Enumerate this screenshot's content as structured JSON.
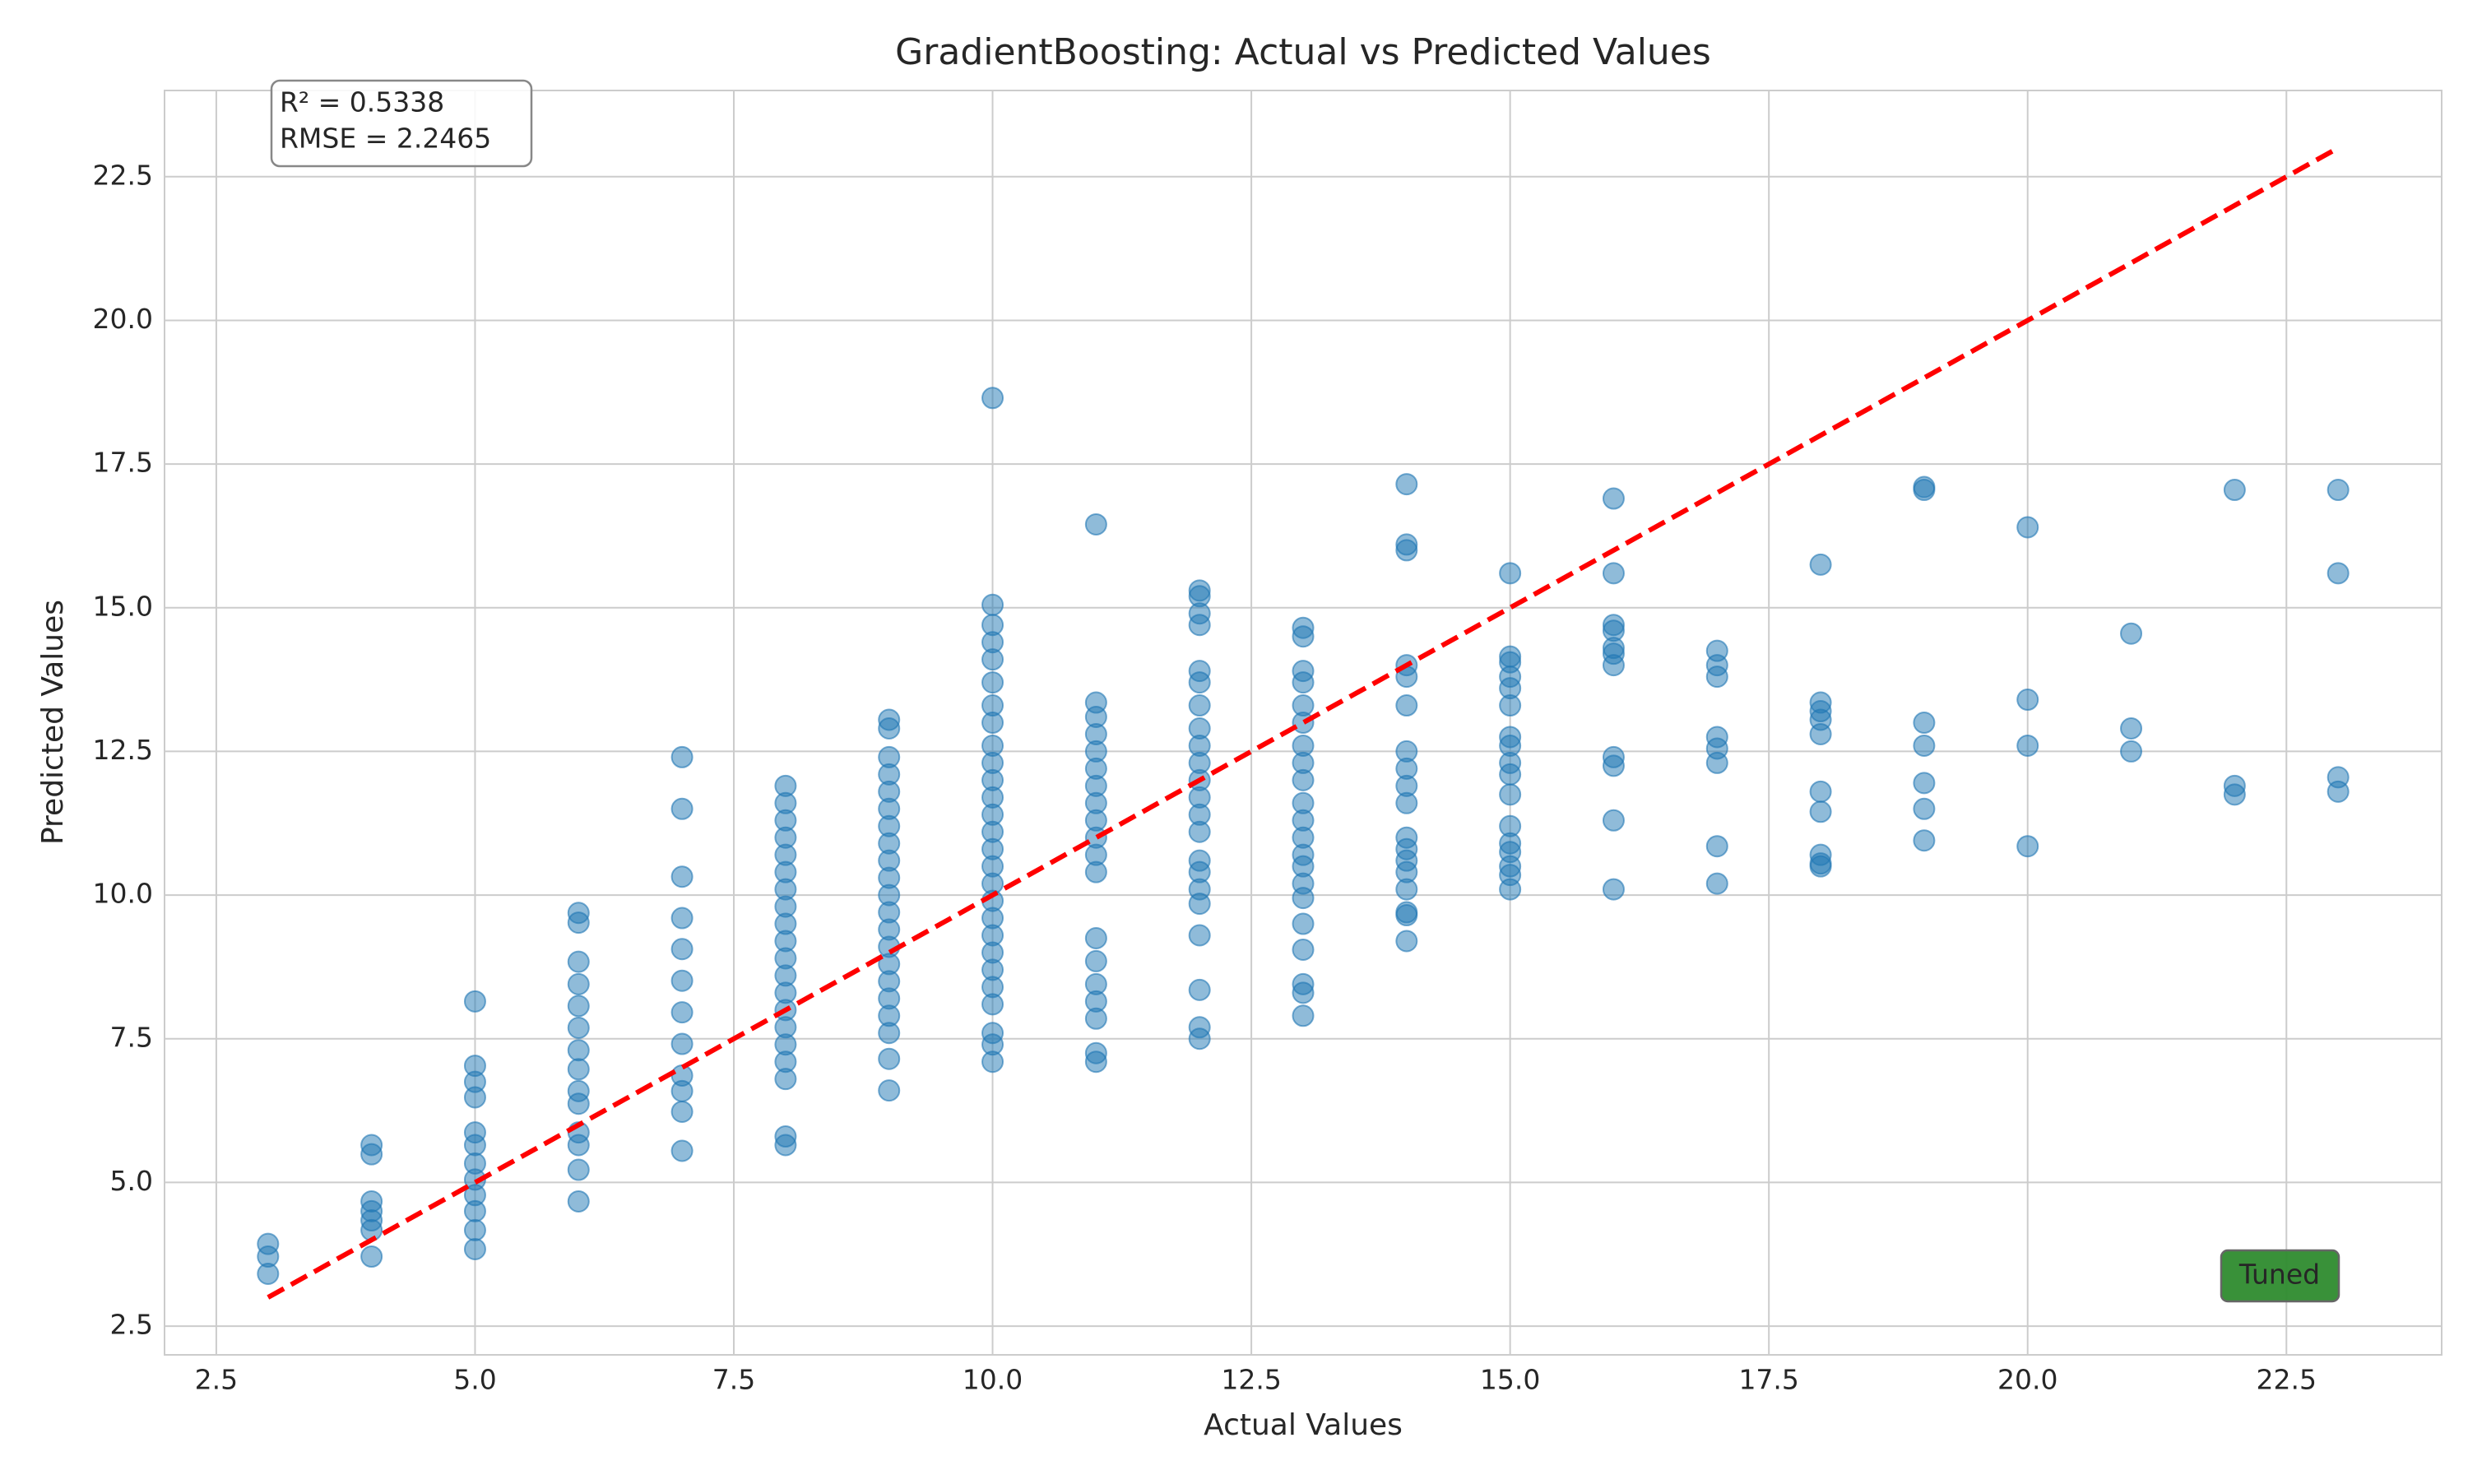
{
  "chart_data": {
    "type": "scatter",
    "title": "GradientBoosting: Actual vs Predicted Values",
    "x_label": "Actual Values",
    "y_label": "Predicted Values",
    "color": "#1f77b4",
    "xlim": [
      2.0,
      24.0
    ],
    "ylim": [
      2.0,
      24.0
    ],
    "xticks": [
      {
        "value": 2.5,
        "label": "2.5"
      },
      {
        "value": 5,
        "label": "5.0"
      },
      {
        "value": 7.5,
        "label": "7.5"
      },
      {
        "value": 10,
        "label": "10.0"
      },
      {
        "value": 12.5,
        "label": "12.5"
      },
      {
        "value": 15,
        "label": "15.0"
      },
      {
        "value": 17.5,
        "label": "17.5"
      },
      {
        "value": 20,
        "label": "20.0"
      },
      {
        "value": 22.5,
        "label": "22.5"
      }
    ],
    "yticks": [
      {
        "value": 2.5,
        "label": "2.5"
      },
      {
        "value": 5,
        "label": "5.0"
      },
      {
        "value": 7.5,
        "label": "7.5"
      },
      {
        "value": 10,
        "label": "10.0"
      },
      {
        "value": 12.5,
        "label": "12.5"
      },
      {
        "value": 15,
        "label": "15.0"
      },
      {
        "value": 17.5,
        "label": "17.5"
      },
      {
        "value": 20,
        "label": "20.0"
      },
      {
        "value": 22.5,
        "label": "22.5"
      }
    ],
    "grid": true,
    "x": [
      3,
      3,
      3,
      4,
      4,
      4,
      4,
      4,
      4,
      4,
      5,
      5,
      5,
      5,
      5,
      5,
      5,
      5,
      5,
      5,
      5,
      5,
      6,
      6,
      6,
      6,
      6,
      6,
      6,
      6,
      6,
      6,
      6,
      6,
      6,
      6,
      7,
      7,
      7,
      7,
      7,
      7,
      7,
      7,
      7,
      7,
      7,
      7,
      8,
      8,
      8,
      8,
      8,
      8,
      8,
      8,
      8,
      8,
      8,
      8,
      8,
      8,
      8,
      8,
      8,
      8,
      8,
      8,
      9,
      9,
      9,
      9,
      9,
      9,
      9,
      9,
      9,
      9,
      9,
      9,
      9,
      9,
      9,
      9,
      9,
      9,
      9,
      9,
      9,
      10,
      10,
      10,
      10,
      10,
      10,
      10,
      10,
      10,
      10,
      10,
      10,
      10,
      10,
      10,
      10,
      10,
      10,
      10,
      10,
      10,
      10,
      10,
      10,
      10,
      10,
      10,
      11,
      11,
      11,
      11,
      11,
      11,
      11,
      11,
      11,
      11,
      11,
      11,
      11,
      11,
      11,
      11,
      11,
      11,
      11,
      12,
      12,
      12,
      12,
      12,
      12,
      12,
      12,
      12,
      12,
      12,
      12,
      12,
      12,
      12,
      12,
      12,
      12,
      12,
      12,
      12,
      12,
      13,
      13,
      13,
      13,
      13,
      13,
      13,
      13,
      13,
      13,
      13,
      13,
      13,
      13,
      13,
      13,
      13,
      13,
      13,
      13,
      13,
      14,
      14,
      14,
      14,
      14,
      14,
      14,
      14,
      14,
      14,
      14,
      14,
      14,
      14,
      14,
      14,
      14,
      14,
      15,
      15,
      15,
      15,
      15,
      15,
      15,
      15,
      15,
      15,
      15,
      15,
      15,
      15,
      15,
      15,
      15,
      16,
      16,
      16,
      16,
      16,
      16,
      16,
      16,
      16,
      16,
      16,
      17,
      17,
      17,
      17,
      17,
      17,
      17,
      17,
      18,
      18,
      18,
      18,
      18,
      18,
      18,
      18,
      18,
      18,
      19,
      19,
      19,
      19,
      19,
      19,
      19,
      20,
      20,
      20,
      20,
      21,
      21,
      21,
      22,
      22,
      22,
      23,
      23,
      23,
      23
    ],
    "y": [
      3.93,
      3.71,
      3.41,
      5.65,
      5.49,
      4.67,
      4.5,
      4.34,
      4.17,
      3.71,
      8.15,
      7.03,
      6.75,
      6.48,
      5.87,
      5.65,
      5.33,
      5.05,
      4.78,
      4.5,
      4.17,
      3.84,
      9.69,
      9.52,
      8.84,
      8.45,
      8.07,
      7.69,
      7.3,
      6.97,
      6.59,
      6.37,
      5.87,
      5.65,
      5.22,
      4.67,
      12.4,
      11.5,
      10.32,
      9.6,
      9.06,
      8.51,
      7.96,
      7.41,
      6.86,
      6.59,
      6.23,
      5.55,
      11.9,
      11.6,
      11.3,
      11.0,
      10.7,
      10.4,
      10.1,
      9.8,
      9.5,
      9.2,
      8.9,
      8.6,
      8.3,
      8.0,
      7.7,
      7.4,
      7.1,
      6.8,
      5.8,
      5.65,
      13.05,
      12.9,
      12.4,
      12.1,
      11.8,
      11.5,
      11.2,
      10.9,
      10.6,
      10.3,
      10.0,
      9.7,
      9.4,
      9.1,
      8.8,
      8.5,
      8.2,
      7.9,
      7.6,
      7.15,
      6.6,
      18.65,
      15.05,
      14.7,
      14.4,
      14.1,
      13.7,
      13.3,
      13.0,
      12.6,
      12.3,
      12.0,
      11.7,
      11.4,
      11.1,
      10.8,
      10.5,
      10.2,
      9.9,
      9.6,
      9.3,
      9.0,
      8.7,
      8.4,
      8.1,
      7.6,
      7.4,
      7.1,
      16.45,
      13.35,
      13.1,
      12.8,
      12.5,
      12.2,
      11.9,
      11.6,
      11.3,
      11.0,
      10.7,
      10.4,
      9.25,
      8.85,
      8.45,
      8.15,
      7.85,
      7.25,
      7.1,
      15.3,
      15.2,
      14.9,
      14.7,
      13.9,
      13.7,
      13.3,
      12.9,
      12.6,
      12.3,
      12.0,
      11.7,
      11.4,
      11.1,
      10.6,
      10.4,
      10.1,
      9.85,
      9.3,
      8.35,
      7.7,
      7.5,
      14.65,
      14.5,
      13.9,
      13.7,
      13.3,
      13.0,
      12.6,
      12.3,
      12.0,
      11.6,
      11.3,
      11.0,
      10.7,
      10.5,
      10.2,
      9.95,
      9.5,
      9.05,
      8.45,
      8.3,
      7.9,
      17.15,
      16.1,
      16.0,
      14.0,
      13.8,
      13.3,
      12.5,
      12.2,
      11.9,
      11.6,
      11.0,
      10.8,
      10.6,
      10.4,
      10.1,
      9.7,
      9.65,
      9.2,
      15.6,
      14.15,
      14.05,
      13.8,
      13.6,
      13.3,
      12.75,
      12.6,
      12.3,
      12.1,
      11.75,
      11.2,
      10.9,
      10.75,
      10.5,
      10.35,
      10.1,
      16.9,
      15.6,
      14.7,
      14.6,
      14.3,
      14.2,
      14.0,
      12.4,
      12.25,
      11.3,
      10.1,
      14.25,
      14.0,
      13.8,
      12.75,
      12.55,
      12.3,
      10.85,
      10.2,
      15.75,
      13.35,
      13.2,
      13.05,
      12.8,
      11.8,
      11.45,
      10.7,
      10.55,
      10.5,
      17.1,
      17.05,
      13.0,
      12.6,
      11.95,
      11.5,
      10.95,
      16.4,
      13.4,
      12.6,
      10.85,
      14.55,
      12.9,
      12.5,
      17.05,
      11.9,
      11.75,
      17.05,
      15.6,
      12.05,
      11.8
    ],
    "reference_line": {
      "x": [
        3,
        23
      ],
      "y": [
        3,
        23
      ],
      "color": "#ff0000"
    },
    "stats_text": [
      "R² = 0.5338",
      "RMSE = 2.2465"
    ],
    "badge": "Tuned",
    "badge_color": "#2e8b2e"
  }
}
